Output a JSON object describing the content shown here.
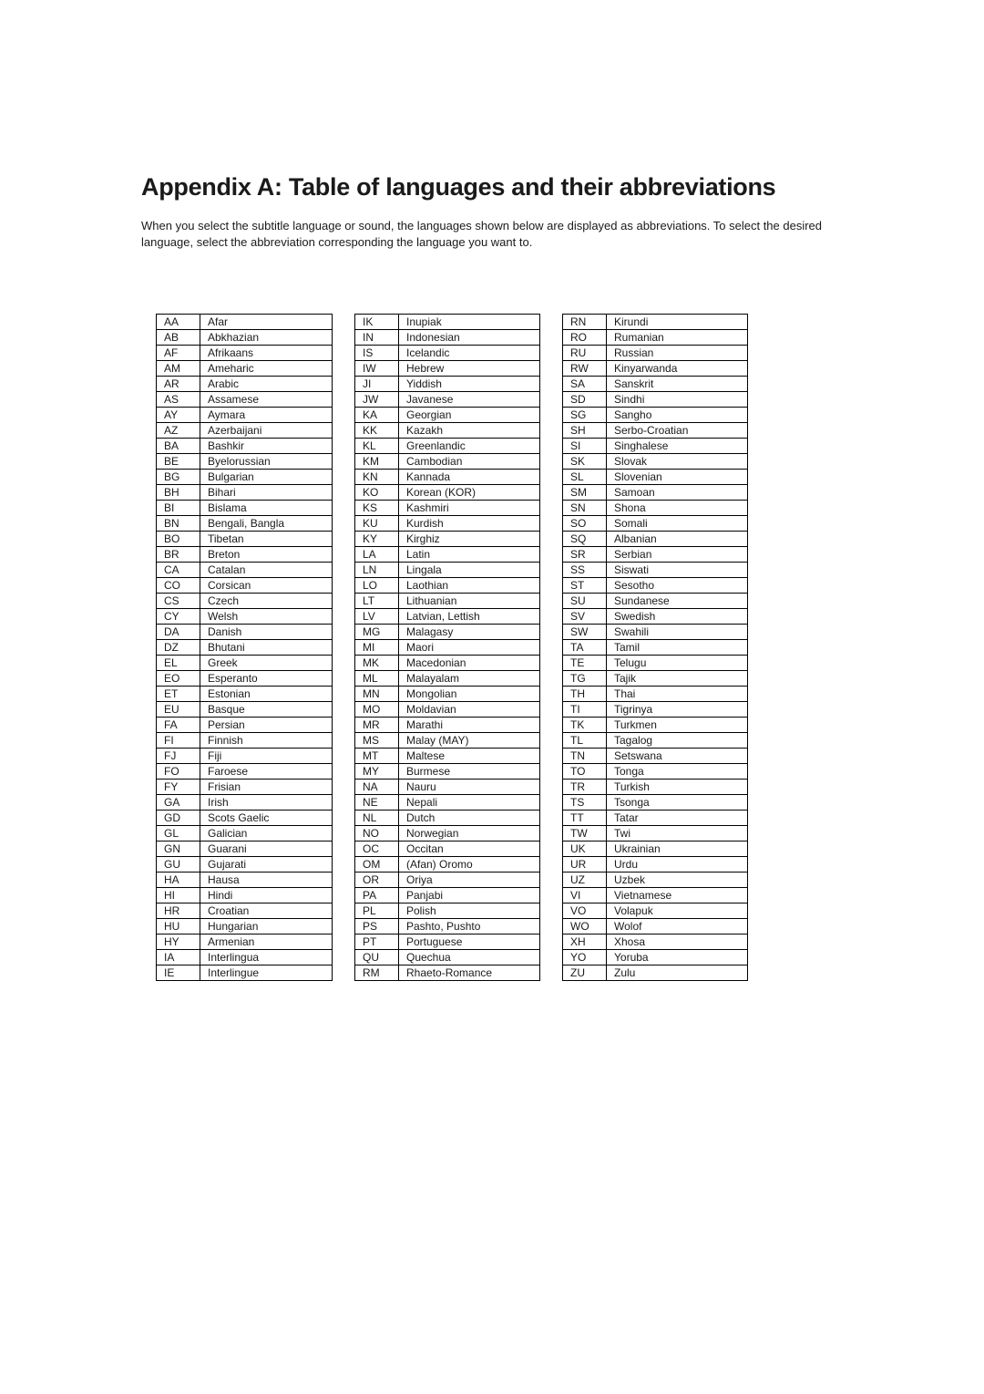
{
  "title": "Appendix A:  Table of languages and their abbreviations",
  "intro": "When you select the subtitle language or sound, the languages shown below are displayed as abbreviations.  To select the desired language, select the abbreviation corresponding the language you want to.",
  "columns": [
    [
      {
        "abbr": "AA",
        "lang": "Afar"
      },
      {
        "abbr": "AB",
        "lang": "Abkhazian"
      },
      {
        "abbr": "AF",
        "lang": "Afrikaans"
      },
      {
        "abbr": "AM",
        "lang": "Ameharic"
      },
      {
        "abbr": "AR",
        "lang": "Arabic"
      },
      {
        "abbr": "AS",
        "lang": "Assamese"
      },
      {
        "abbr": "AY",
        "lang": "Aymara"
      },
      {
        "abbr": "AZ",
        "lang": "Azerbaijani"
      },
      {
        "abbr": "BA",
        "lang": "Bashkir"
      },
      {
        "abbr": "BE",
        "lang": "Byelorussian"
      },
      {
        "abbr": "BG",
        "lang": "Bulgarian"
      },
      {
        "abbr": "BH",
        "lang": "Bihari"
      },
      {
        "abbr": "BI",
        "lang": "Bislama"
      },
      {
        "abbr": "BN",
        "lang": "Bengali, Bangla"
      },
      {
        "abbr": "BO",
        "lang": "Tibetan"
      },
      {
        "abbr": "BR",
        "lang": "Breton"
      },
      {
        "abbr": "CA",
        "lang": "Catalan"
      },
      {
        "abbr": "CO",
        "lang": "Corsican"
      },
      {
        "abbr": "CS",
        "lang": "Czech"
      },
      {
        "abbr": "CY",
        "lang": "Welsh"
      },
      {
        "abbr": "DA",
        "lang": "Danish"
      },
      {
        "abbr": "DZ",
        "lang": "Bhutani"
      },
      {
        "abbr": "EL",
        "lang": "Greek"
      },
      {
        "abbr": "EO",
        "lang": "Esperanto"
      },
      {
        "abbr": "ET",
        "lang": "Estonian"
      },
      {
        "abbr": "EU",
        "lang": "Basque"
      },
      {
        "abbr": "FA",
        "lang": "Persian"
      },
      {
        "abbr": "FI",
        "lang": "Finnish"
      },
      {
        "abbr": "FJ",
        "lang": "Fiji"
      },
      {
        "abbr": "FO",
        "lang": "Faroese"
      },
      {
        "abbr": "FY",
        "lang": "Frisian"
      },
      {
        "abbr": "GA",
        "lang": "Irish"
      },
      {
        "abbr": "GD",
        "lang": "Scots Gaelic"
      },
      {
        "abbr": "GL",
        "lang": "Galician"
      },
      {
        "abbr": "GN",
        "lang": "Guarani"
      },
      {
        "abbr": "GU",
        "lang": "Gujarati"
      },
      {
        "abbr": "HA",
        "lang": "Hausa"
      },
      {
        "abbr": "HI",
        "lang": "Hindi"
      },
      {
        "abbr": "HR",
        "lang": "Croatian"
      },
      {
        "abbr": "HU",
        "lang": "Hungarian"
      },
      {
        "abbr": "HY",
        "lang": "Armenian"
      },
      {
        "abbr": "IA",
        "lang": "Interlingua"
      },
      {
        "abbr": "IE",
        "lang": "Interlingue"
      }
    ],
    [
      {
        "abbr": "IK",
        "lang": "Inupiak"
      },
      {
        "abbr": "IN",
        "lang": "Indonesian"
      },
      {
        "abbr": "IS",
        "lang": "Icelandic"
      },
      {
        "abbr": "IW",
        "lang": "Hebrew"
      },
      {
        "abbr": "JI",
        "lang": "Yiddish"
      },
      {
        "abbr": "JW",
        "lang": "Javanese"
      },
      {
        "abbr": "KA",
        "lang": "Georgian"
      },
      {
        "abbr": "KK",
        "lang": "Kazakh"
      },
      {
        "abbr": "KL",
        "lang": "Greenlandic"
      },
      {
        "abbr": "KM",
        "lang": "Cambodian"
      },
      {
        "abbr": "KN",
        "lang": "Kannada"
      },
      {
        "abbr": "KO",
        "lang": "Korean (KOR)"
      },
      {
        "abbr": "KS",
        "lang": "Kashmiri"
      },
      {
        "abbr": "KU",
        "lang": "Kurdish"
      },
      {
        "abbr": "KY",
        "lang": "Kirghiz"
      },
      {
        "abbr": "LA",
        "lang": "Latin"
      },
      {
        "abbr": "LN",
        "lang": "Lingala"
      },
      {
        "abbr": "LO",
        "lang": "Laothian"
      },
      {
        "abbr": "LT",
        "lang": "Lithuanian"
      },
      {
        "abbr": "LV",
        "lang": "Latvian, Lettish"
      },
      {
        "abbr": "MG",
        "lang": "Malagasy"
      },
      {
        "abbr": "MI",
        "lang": "Maori"
      },
      {
        "abbr": "MK",
        "lang": "Macedonian"
      },
      {
        "abbr": "ML",
        "lang": "Malayalam"
      },
      {
        "abbr": "MN",
        "lang": "Mongolian"
      },
      {
        "abbr": "MO",
        "lang": "Moldavian"
      },
      {
        "abbr": "MR",
        "lang": "Marathi"
      },
      {
        "abbr": "MS",
        "lang": "Malay (MAY)"
      },
      {
        "abbr": "MT",
        "lang": "Maltese"
      },
      {
        "abbr": "MY",
        "lang": "Burmese"
      },
      {
        "abbr": "NA",
        "lang": "Nauru"
      },
      {
        "abbr": "NE",
        "lang": "Nepali"
      },
      {
        "abbr": "NL",
        "lang": "Dutch"
      },
      {
        "abbr": "NO",
        "lang": "Norwegian"
      },
      {
        "abbr": "OC",
        "lang": "Occitan"
      },
      {
        "abbr": "OM",
        "lang": "(Afan) Oromo"
      },
      {
        "abbr": "OR",
        "lang": "Oriya"
      },
      {
        "abbr": "PA",
        "lang": "Panjabi"
      },
      {
        "abbr": "PL",
        "lang": "Polish"
      },
      {
        "abbr": "PS",
        "lang": "Pashto, Pushto"
      },
      {
        "abbr": "PT",
        "lang": "Portuguese"
      },
      {
        "abbr": "QU",
        "lang": "Quechua"
      },
      {
        "abbr": "RM",
        "lang": "Rhaeto-Romance"
      }
    ],
    [
      {
        "abbr": "RN",
        "lang": "Kirundi"
      },
      {
        "abbr": "RO",
        "lang": "Rumanian"
      },
      {
        "abbr": "RU",
        "lang": "Russian"
      },
      {
        "abbr": "RW",
        "lang": "Kinyarwanda"
      },
      {
        "abbr": "SA",
        "lang": "Sanskrit"
      },
      {
        "abbr": "SD",
        "lang": "Sindhi"
      },
      {
        "abbr": "SG",
        "lang": "Sangho"
      },
      {
        "abbr": "SH",
        "lang": "Serbo-Croatian"
      },
      {
        "abbr": "SI",
        "lang": "Singhalese"
      },
      {
        "abbr": "SK",
        "lang": "Slovak"
      },
      {
        "abbr": "SL",
        "lang": "Slovenian"
      },
      {
        "abbr": "SM",
        "lang": "Samoan"
      },
      {
        "abbr": "SN",
        "lang": "Shona"
      },
      {
        "abbr": "SO",
        "lang": "Somali"
      },
      {
        "abbr": "SQ",
        "lang": "Albanian"
      },
      {
        "abbr": "SR",
        "lang": "Serbian"
      },
      {
        "abbr": "SS",
        "lang": "Siswati"
      },
      {
        "abbr": "ST",
        "lang": "Sesotho"
      },
      {
        "abbr": "SU",
        "lang": "Sundanese"
      },
      {
        "abbr": "SV",
        "lang": "Swedish"
      },
      {
        "abbr": "SW",
        "lang": "Swahili"
      },
      {
        "abbr": "TA",
        "lang": "Tamil"
      },
      {
        "abbr": "TE",
        "lang": "Telugu"
      },
      {
        "abbr": "TG",
        "lang": "Tajik"
      },
      {
        "abbr": "TH",
        "lang": "Thai"
      },
      {
        "abbr": "TI",
        "lang": "Tigrinya"
      },
      {
        "abbr": "TK",
        "lang": "Turkmen"
      },
      {
        "abbr": "TL",
        "lang": "Tagalog"
      },
      {
        "abbr": "TN",
        "lang": "Setswana"
      },
      {
        "abbr": "TO",
        "lang": "Tonga"
      },
      {
        "abbr": "TR",
        "lang": "Turkish"
      },
      {
        "abbr": "TS",
        "lang": "Tsonga"
      },
      {
        "abbr": "TT",
        "lang": "Tatar"
      },
      {
        "abbr": "TW",
        "lang": "Twi"
      },
      {
        "abbr": "UK",
        "lang": "Ukrainian"
      },
      {
        "abbr": "UR",
        "lang": "Urdu"
      },
      {
        "abbr": "UZ",
        "lang": "Uzbek"
      },
      {
        "abbr": "VI",
        "lang": "Vietnamese"
      },
      {
        "abbr": "VO",
        "lang": "Volapuk"
      },
      {
        "abbr": "WO",
        "lang": "Wolof"
      },
      {
        "abbr": "XH",
        "lang": "Xhosa"
      },
      {
        "abbr": "YO",
        "lang": "Yoruba"
      },
      {
        "abbr": "ZU",
        "lang": "Zulu"
      }
    ]
  ]
}
